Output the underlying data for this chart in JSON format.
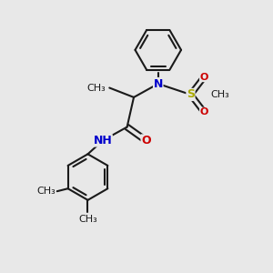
{
  "background_color": "#e8e8e8",
  "fig_width": 3.0,
  "fig_height": 3.0,
  "dpi": 100,
  "bond_color": "#1a1a1a",
  "bond_lw": 1.5,
  "font_size": 9,
  "colors": {
    "N": "#0000cc",
    "O": "#cc0000",
    "S": "#aaaa00",
    "C": "#1a1a1a",
    "H": "#5a9a5a"
  },
  "xlim": [
    0,
    10
  ],
  "ylim": [
    0,
    10
  ]
}
